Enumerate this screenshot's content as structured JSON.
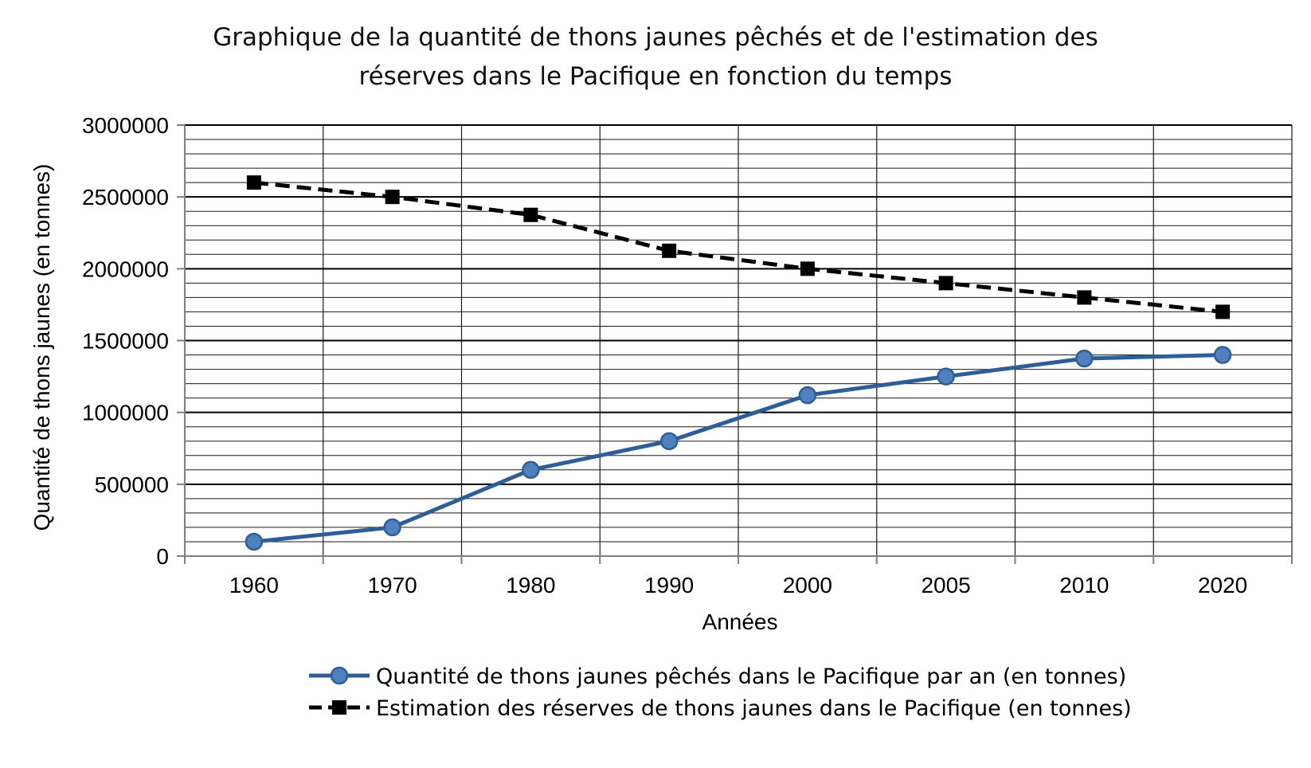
{
  "chart_data": {
    "type": "line",
    "title_lines": [
      "Graphique de la quantité de thons jaunes pêchés et de l'estimation des",
      "réserves dans le Pacifique en fonction du temps"
    ],
    "xlabel": "Années",
    "ylabel": "Quantité de thons jaunes (en tonnes)",
    "categories": [
      "1960",
      "1970",
      "1980",
      "1990",
      "2000",
      "2005",
      "2010",
      "2020"
    ],
    "yticks": [
      "0",
      "500000",
      "1000000",
      "1500000",
      "2000000",
      "2500000",
      "3000000"
    ],
    "ylim": [
      0,
      3000000
    ],
    "minor_grid_step": 100000,
    "grid": true,
    "legend_position": "bottom",
    "series": [
      {
        "name": "Quantité de thons jaunes pêchés dans le Pacifique par an (en tonnes)",
        "values": [
          100000,
          200000,
          600000,
          800000,
          1120000,
          1250000,
          1375000,
          1400000
        ],
        "color": "#2e5e97",
        "marker_color": "#4f81bd",
        "marker": "circle",
        "line_style": "solid"
      },
      {
        "name": "Estimation des réserves de thons jaunes dans le Pacifique (en tonnes)",
        "values": [
          2600000,
          2500000,
          2375000,
          2125000,
          2000000,
          1900000,
          1800000,
          1700000
        ],
        "color": "#000000",
        "marker_color": "#000000",
        "marker": "square",
        "line_style": "dashed"
      }
    ]
  }
}
